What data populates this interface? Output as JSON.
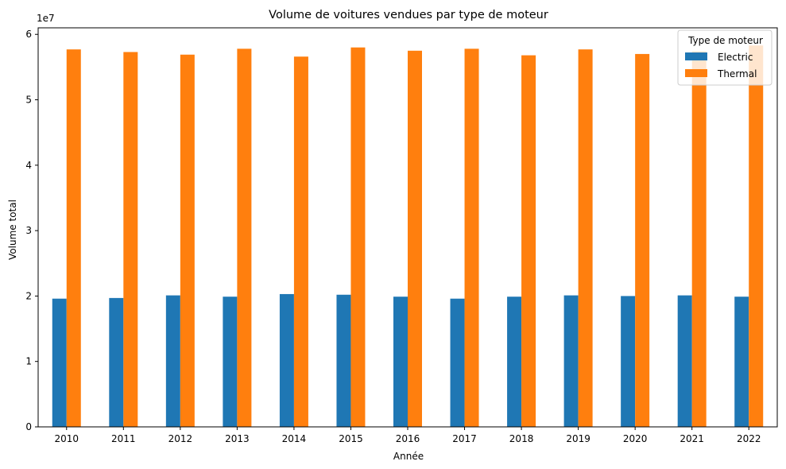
{
  "chart_data": {
    "type": "bar",
    "title": "Volume de voitures vendues par type de moteur",
    "xlabel": "Année",
    "ylabel": "Volume total",
    "y_multiplier_label": "1e7",
    "y_multiplier": 10000000,
    "ylim": [
      0,
      61000000
    ],
    "yticks": [
      0,
      1,
      2,
      3,
      4,
      5,
      6
    ],
    "categories": [
      "2010",
      "2011",
      "2012",
      "2013",
      "2014",
      "2015",
      "2016",
      "2017",
      "2018",
      "2019",
      "2020",
      "2021",
      "2022"
    ],
    "series": [
      {
        "name": "Electric",
        "color": "#1f77b4",
        "values": [
          19600000,
          19700000,
          20100000,
          19900000,
          20300000,
          20200000,
          19900000,
          19600000,
          19900000,
          20100000,
          20000000,
          20100000,
          19900000
        ]
      },
      {
        "name": "Thermal",
        "color": "#ff7f0e",
        "values": [
          57700000,
          57300000,
          56900000,
          57800000,
          56600000,
          58000000,
          57500000,
          57800000,
          56800000,
          57700000,
          57000000,
          57400000,
          58300000
        ]
      }
    ],
    "legend": {
      "title": "Type de moteur",
      "placement": "top-right"
    },
    "grid": false
  }
}
